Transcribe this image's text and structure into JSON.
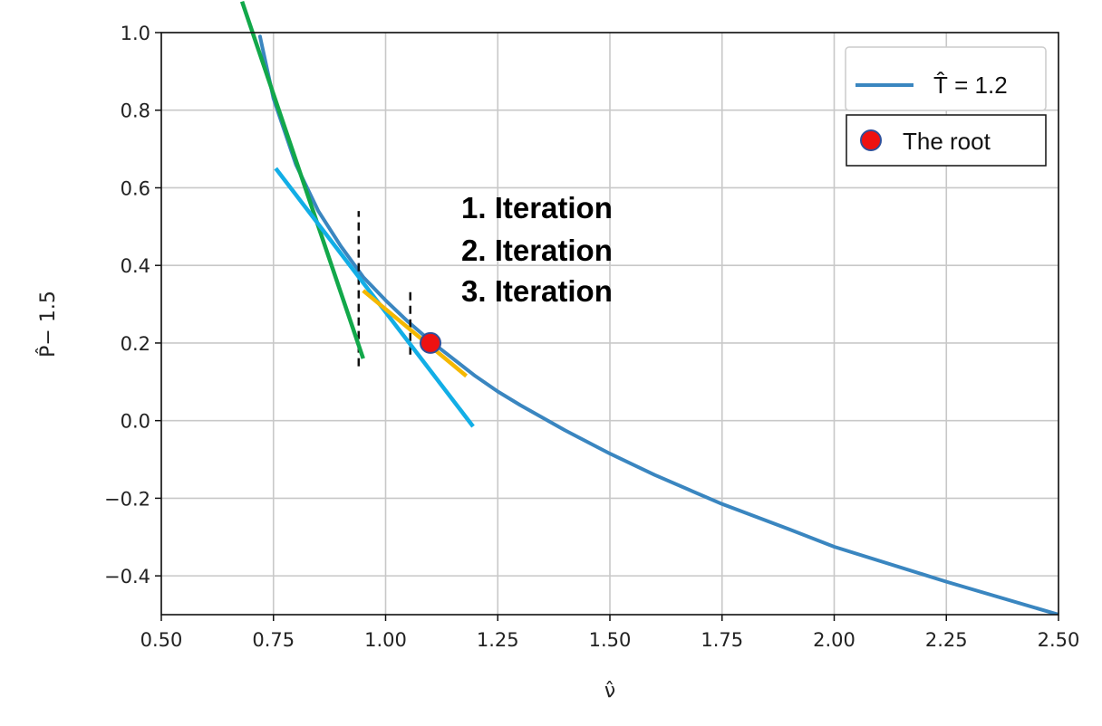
{
  "chart_data": {
    "type": "line",
    "xlabel": "ν̂",
    "ylabel": "P̂− 1.5",
    "xlim": [
      0.5,
      2.5
    ],
    "ylim": [
      -0.5,
      1.0
    ],
    "x_ticks": [
      0.5,
      0.75,
      1.0,
      1.25,
      1.5,
      1.75,
      2.0,
      2.25,
      2.5
    ],
    "x_tick_labels": [
      "0.50",
      "0.75",
      "1.00",
      "1.25",
      "1.50",
      "1.75",
      "2.00",
      "2.25",
      "2.50"
    ],
    "y_ticks": [
      -0.4,
      -0.2,
      0.0,
      0.2,
      0.4,
      0.6,
      0.8,
      1.0
    ],
    "y_tick_labels": [
      "−0.4",
      "−0.2",
      "0.0",
      "0.2",
      "0.4",
      "0.6",
      "0.8",
      "1.0"
    ],
    "grid": true,
    "series": [
      {
        "name": "T̂ = 1.2",
        "color": "#3a86c0",
        "x": [
          0.72,
          0.75,
          0.8,
          0.85,
          0.9,
          0.95,
          1.0,
          1.05,
          1.1,
          1.15,
          1.2,
          1.25,
          1.3,
          1.4,
          1.5,
          1.6,
          1.75,
          1.9,
          2.0,
          2.25,
          2.5
        ],
        "y": [
          0.99,
          0.83,
          0.66,
          0.54,
          0.45,
          0.37,
          0.31,
          0.255,
          0.205,
          0.16,
          0.115,
          0.075,
          0.04,
          -0.025,
          -0.085,
          -0.14,
          -0.215,
          -0.28,
          -0.325,
          -0.415,
          -0.5
        ]
      }
    ],
    "tangents": [
      {
        "name": "1. Iteration",
        "color": "#12a84a",
        "x": [
          0.68,
          0.95
        ],
        "y": [
          1.08,
          0.16
        ]
      },
      {
        "name": "2. Iteration",
        "color": "#12aee6",
        "x": [
          0.755,
          1.195
        ],
        "y": [
          0.65,
          -0.015
        ]
      },
      {
        "name": "3. Iteration",
        "color": "#f5b800",
        "x": [
          0.95,
          1.18
        ],
        "y": [
          0.335,
          0.115
        ]
      }
    ],
    "guides": [
      {
        "x": 0.94,
        "y": [
          0.14,
          0.54
        ]
      },
      {
        "x": 1.055,
        "y": [
          0.17,
          0.335
        ]
      }
    ],
    "root": {
      "x": 1.1,
      "y": 0.2,
      "label": "The root",
      "color": "#ee1111",
      "edge": "#2f4f9a"
    },
    "annotations": [
      {
        "text": "1. Iteration",
        "color": "#12a84a"
      },
      {
        "text": "2. Iteration",
        "color": "#12aee6"
      },
      {
        "text": "3. Iteration",
        "color": "#f5b800"
      }
    ],
    "legend_position": "top-right"
  }
}
